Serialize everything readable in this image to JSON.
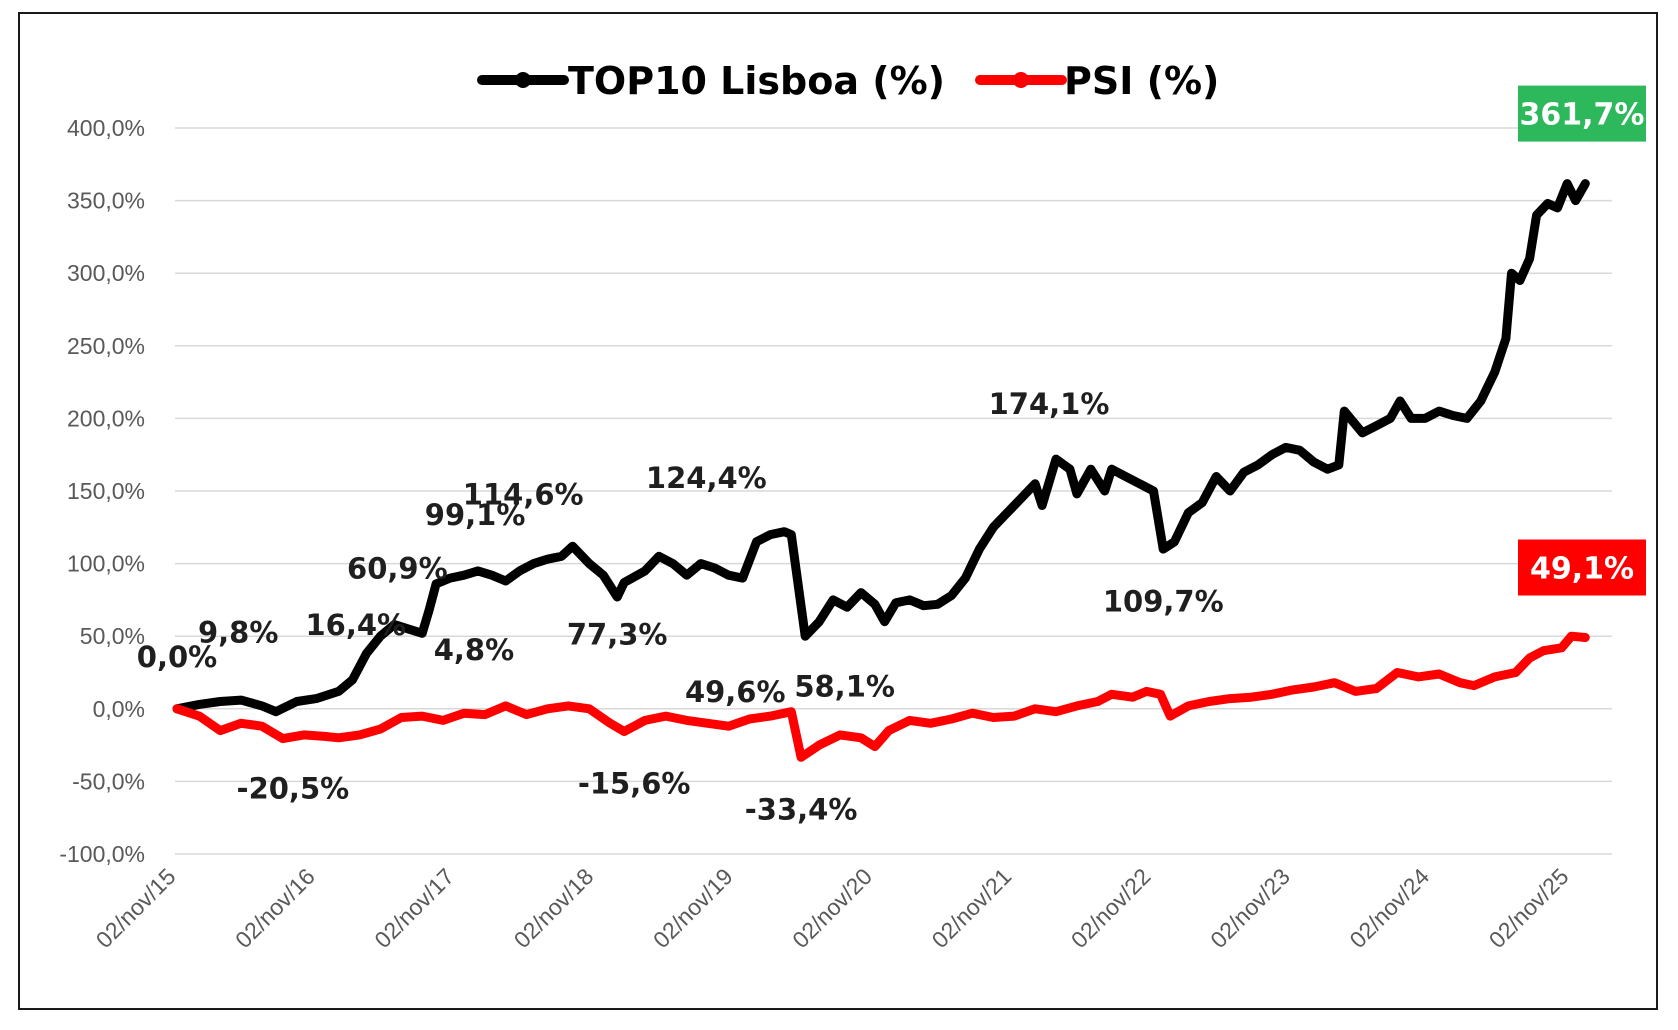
{
  "chart_data": {
    "type": "line",
    "title": "",
    "xlabel": "",
    "ylabel": "",
    "ylim": [
      -100,
      400
    ],
    "yticks": [
      -100,
      -50,
      0,
      50,
      100,
      150,
      200,
      250,
      300,
      350,
      400
    ],
    "ytick_labels": [
      "-100,0%",
      "-50,0%",
      "0,0%",
      "50,0%",
      "100,0%",
      "150,0%",
      "200,0%",
      "250,0%",
      "300,0%",
      "350,0%",
      "400,0%"
    ],
    "xlim": [
      2015.84,
      2025.95
    ],
    "x_tick_values": [
      2015.84,
      2016.84,
      2017.84,
      2018.84,
      2019.84,
      2020.84,
      2021.84,
      2022.84,
      2023.84,
      2024.84,
      2025.84
    ],
    "x_tick_labels": [
      "02/nov/15",
      "02/nov/16",
      "02/nov/17",
      "02/nov/18",
      "02/nov/19",
      "02/nov/20",
      "02/nov/21",
      "02/nov/22",
      "02/nov/23",
      "02/nov/24",
      "02/nov/25"
    ],
    "grid": true,
    "legend_position": "top-center",
    "series": [
      {
        "name": "TOP10 Lisboa (%)",
        "color": "#000000",
        "points": [
          [
            2015.84,
            0
          ],
          [
            2016.0,
            3
          ],
          [
            2016.15,
            5
          ],
          [
            2016.3,
            6
          ],
          [
            2016.45,
            2
          ],
          [
            2016.55,
            -2
          ],
          [
            2016.7,
            5
          ],
          [
            2016.84,
            7
          ],
          [
            2017.0,
            12
          ],
          [
            2017.1,
            20
          ],
          [
            2017.2,
            38
          ],
          [
            2017.3,
            50
          ],
          [
            2017.4,
            58
          ],
          [
            2017.5,
            55
          ],
          [
            2017.6,
            52
          ],
          [
            2017.65,
            68
          ],
          [
            2017.7,
            86
          ],
          [
            2017.8,
            90
          ],
          [
            2017.9,
            92
          ],
          [
            2018.0,
            95
          ],
          [
            2018.1,
            92
          ],
          [
            2018.2,
            88
          ],
          [
            2018.3,
            95
          ],
          [
            2018.4,
            100
          ],
          [
            2018.5,
            103
          ],
          [
            2018.6,
            105
          ],
          [
            2018.68,
            112
          ],
          [
            2018.8,
            100
          ],
          [
            2018.9,
            92
          ],
          [
            2019.0,
            77
          ],
          [
            2019.05,
            87
          ],
          [
            2019.2,
            95
          ],
          [
            2019.3,
            105
          ],
          [
            2019.4,
            100
          ],
          [
            2019.5,
            92
          ],
          [
            2019.6,
            100
          ],
          [
            2019.7,
            97
          ],
          [
            2019.8,
            92
          ],
          [
            2019.9,
            90
          ],
          [
            2020.0,
            115
          ],
          [
            2020.1,
            120
          ],
          [
            2020.2,
            122
          ],
          [
            2020.25,
            120
          ],
          [
            2020.35,
            50
          ],
          [
            2020.45,
            60
          ],
          [
            2020.55,
            75
          ],
          [
            2020.65,
            70
          ],
          [
            2020.75,
            80
          ],
          [
            2020.85,
            72
          ],
          [
            2020.92,
            60
          ],
          [
            2021.0,
            73
          ],
          [
            2021.1,
            75
          ],
          [
            2021.2,
            71
          ],
          [
            2021.3,
            72
          ],
          [
            2021.4,
            78
          ],
          [
            2021.5,
            90
          ],
          [
            2021.6,
            110
          ],
          [
            2021.7,
            125
          ],
          [
            2021.8,
            135
          ],
          [
            2021.9,
            145
          ],
          [
            2022.0,
            155
          ],
          [
            2022.05,
            140
          ],
          [
            2022.15,
            172
          ],
          [
            2022.25,
            165
          ],
          [
            2022.3,
            148
          ],
          [
            2022.4,
            165
          ],
          [
            2022.5,
            150
          ],
          [
            2022.55,
            165
          ],
          [
            2022.65,
            160
          ],
          [
            2022.75,
            155
          ],
          [
            2022.85,
            150
          ],
          [
            2022.92,
            110
          ],
          [
            2023.0,
            115
          ],
          [
            2023.1,
            135
          ],
          [
            2023.2,
            142
          ],
          [
            2023.3,
            160
          ],
          [
            2023.4,
            150
          ],
          [
            2023.5,
            163
          ],
          [
            2023.6,
            168
          ],
          [
            2023.7,
            175
          ],
          [
            2023.8,
            180
          ],
          [
            2023.9,
            178
          ],
          [
            2024.0,
            170
          ],
          [
            2024.1,
            165
          ],
          [
            2024.18,
            168
          ],
          [
            2024.22,
            205
          ],
          [
            2024.35,
            190
          ],
          [
            2024.45,
            195
          ],
          [
            2024.55,
            200
          ],
          [
            2024.62,
            212
          ],
          [
            2024.7,
            200
          ],
          [
            2024.8,
            200
          ],
          [
            2024.9,
            205
          ],
          [
            2025.0,
            202
          ],
          [
            2025.1,
            200
          ],
          [
            2025.2,
            212
          ],
          [
            2025.3,
            232
          ],
          [
            2025.38,
            255
          ],
          [
            2025.42,
            300
          ],
          [
            2025.48,
            295
          ],
          [
            2025.55,
            310
          ],
          [
            2025.6,
            340
          ],
          [
            2025.68,
            348
          ],
          [
            2025.75,
            345
          ],
          [
            2025.82,
            361.7
          ],
          [
            2025.88,
            350
          ],
          [
            2025.95,
            361.7
          ]
        ]
      },
      {
        "name": "PSI (%)",
        "color": "#ff0000",
        "points": [
          [
            2015.84,
            0
          ],
          [
            2016.0,
            -5
          ],
          [
            2016.15,
            -15
          ],
          [
            2016.3,
            -10
          ],
          [
            2016.45,
            -12
          ],
          [
            2016.6,
            -20.5
          ],
          [
            2016.75,
            -18
          ],
          [
            2016.9,
            -19
          ],
          [
            2017.0,
            -20
          ],
          [
            2017.15,
            -18
          ],
          [
            2017.3,
            -14
          ],
          [
            2017.45,
            -6
          ],
          [
            2017.6,
            -5
          ],
          [
            2017.75,
            -8
          ],
          [
            2017.9,
            -3
          ],
          [
            2018.05,
            -4
          ],
          [
            2018.2,
            2
          ],
          [
            2018.35,
            -4
          ],
          [
            2018.5,
            0
          ],
          [
            2018.65,
            2
          ],
          [
            2018.8,
            0
          ],
          [
            2018.95,
            -10
          ],
          [
            2019.05,
            -15.6
          ],
          [
            2019.2,
            -8
          ],
          [
            2019.35,
            -5
          ],
          [
            2019.5,
            -8
          ],
          [
            2019.65,
            -10
          ],
          [
            2019.8,
            -12
          ],
          [
            2019.95,
            -7
          ],
          [
            2020.1,
            -5
          ],
          [
            2020.2,
            -3
          ],
          [
            2020.25,
            -2
          ],
          [
            2020.32,
            -33.4
          ],
          [
            2020.45,
            -25
          ],
          [
            2020.6,
            -18
          ],
          [
            2020.75,
            -20
          ],
          [
            2020.85,
            -26
          ],
          [
            2020.95,
            -15
          ],
          [
            2021.1,
            -8
          ],
          [
            2021.25,
            -10
          ],
          [
            2021.4,
            -7
          ],
          [
            2021.55,
            -3
          ],
          [
            2021.7,
            -6
          ],
          [
            2021.85,
            -5
          ],
          [
            2022.0,
            0
          ],
          [
            2022.15,
            -2
          ],
          [
            2022.3,
            2
          ],
          [
            2022.45,
            5
          ],
          [
            2022.55,
            10
          ],
          [
            2022.7,
            8
          ],
          [
            2022.8,
            12
          ],
          [
            2022.9,
            10
          ],
          [
            2022.97,
            -5
          ],
          [
            2023.1,
            2
          ],
          [
            2023.25,
            5
          ],
          [
            2023.4,
            7
          ],
          [
            2023.55,
            8
          ],
          [
            2023.7,
            10
          ],
          [
            2023.85,
            13
          ],
          [
            2024.0,
            15
          ],
          [
            2024.15,
            18
          ],
          [
            2024.3,
            12
          ],
          [
            2024.45,
            14
          ],
          [
            2024.6,
            25
          ],
          [
            2024.75,
            22
          ],
          [
            2024.9,
            24
          ],
          [
            2025.05,
            18
          ],
          [
            2025.15,
            16
          ],
          [
            2025.3,
            22
          ],
          [
            2025.45,
            25
          ],
          [
            2025.55,
            35
          ],
          [
            2025.65,
            40
          ],
          [
            2025.78,
            42
          ],
          [
            2025.85,
            50
          ],
          [
            2025.95,
            49.1
          ]
        ]
      }
    ],
    "annotations": [
      {
        "text": "0,0%",
        "x": 2015.84,
        "y": 0,
        "dx": 0,
        "dy": -42
      },
      {
        "text": "9,8%",
        "x": 2016.1,
        "y": 9.8,
        "dx": 25,
        "dy": -52
      },
      {
        "text": "16,4%",
        "x": 2016.98,
        "y": 16.4,
        "dx": 20,
        "dy": -50
      },
      {
        "text": "60,9%",
        "x": 2017.35,
        "y": 60.9,
        "dx": 10,
        "dy": -42
      },
      {
        "text": "99,1%",
        "x": 2017.98,
        "y": 99.1,
        "dx": 0,
        "dy": -40
      },
      {
        "text": "114,6%",
        "x": 2018.72,
        "y": 114.6,
        "dx": -55,
        "dy": -38
      },
      {
        "text": "124,4%",
        "x": 2020.25,
        "y": 124.4,
        "dx": -85,
        "dy": -40
      },
      {
        "text": "174,1%",
        "x": 2022.1,
        "y": 174.1,
        "dx": 0,
        "dy": -42
      },
      {
        "text": "4,8%",
        "x": 2017.9,
        "y": 4.8,
        "dx": 10,
        "dy": -42
      },
      {
        "text": "77,3%",
        "x": 2019.0,
        "y": 77.3,
        "dx": 0,
        "dy": 48
      },
      {
        "text": "49,6%",
        "x": 2020.35,
        "y": 49.6,
        "dx": -70,
        "dy": 65
      },
      {
        "text": "58,1%",
        "x": 2020.92,
        "y": 58.1,
        "dx": -40,
        "dy": 72
      },
      {
        "text": "109,7%",
        "x": 2022.92,
        "y": 109.7,
        "dx": 0,
        "dy": 62
      },
      {
        "text": "-20,5%",
        "x": 2016.6,
        "y": -20.5,
        "dx": 10,
        "dy": 60
      },
      {
        "text": "-15,6%",
        "x": 2019.05,
        "y": -15.6,
        "dx": 10,
        "dy": 62
      },
      {
        "text": "-33,4%",
        "x": 2020.32,
        "y": -33.4,
        "dx": 0,
        "dy": 62
      }
    ],
    "end_labels": [
      {
        "text": "361,7%",
        "series": "TOP10 Lisboa (%)",
        "bg": "#2eb85c",
        "y": 361.7
      },
      {
        "text": "49,1%",
        "series": "PSI (%)",
        "bg": "#ff0000",
        "y": 49.1
      }
    ]
  }
}
